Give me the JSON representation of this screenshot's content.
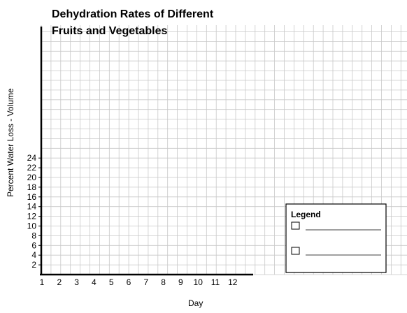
{
  "chart_data": {
    "type": "line",
    "title_lines": [
      "Dehydration Rates of Different",
      "Fruits and Vegetables"
    ],
    "xlabel": "Day",
    "ylabel": "Percent Water Loss - Volume",
    "x_ticks": [
      "1",
      "2",
      "3",
      "4",
      "5",
      "6",
      "7",
      "8",
      "9",
      "10",
      "11",
      "12"
    ],
    "y_ticks": [
      "2",
      "4",
      "6",
      "8",
      "10",
      "12",
      "14",
      "16",
      "18",
      "20",
      "22",
      "24"
    ],
    "xlim": [
      1,
      12
    ],
    "ylim": [
      0,
      24
    ],
    "grid": true,
    "series": [],
    "legend": {
      "title": "Legend",
      "placement": "bottom-right",
      "entries": [
        "",
        ""
      ]
    }
  },
  "colors": {
    "grid": "#c8c8c8",
    "axis": "#000000",
    "background": "#ffffff"
  }
}
